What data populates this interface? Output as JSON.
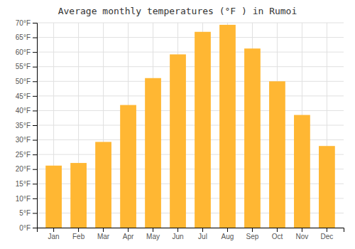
{
  "chart_data": {
    "type": "bar",
    "title": "Average monthly temperatures (°F ) in Rumoi",
    "categories": [
      "Jan",
      "Feb",
      "Mar",
      "Apr",
      "May",
      "Jun",
      "Jul",
      "Aug",
      "Sep",
      "Oct",
      "Nov",
      "Dec"
    ],
    "values": [
      21.2,
      22.1,
      29.3,
      41.9,
      51.1,
      59.2,
      66.9,
      69.3,
      61.2,
      50.0,
      38.5,
      27.9
    ],
    "color": "#FFB733",
    "ylim": [
      0,
      70
    ],
    "yticks": [
      {
        "value": 0,
        "label": "0°F"
      },
      {
        "value": 5,
        "label": "5°F"
      },
      {
        "value": 10,
        "label": "10°F"
      },
      {
        "value": 15,
        "label": "15°F"
      },
      {
        "value": 20,
        "label": "20°F"
      },
      {
        "value": 25,
        "label": "25°F"
      },
      {
        "value": 30,
        "label": "30°F"
      },
      {
        "value": 35,
        "label": "35°F"
      },
      {
        "value": 40,
        "label": "40°F"
      },
      {
        "value": 45,
        "label": "45°F"
      },
      {
        "value": 50,
        "label": "50°F"
      },
      {
        "value": 55,
        "label": "55°F"
      },
      {
        "value": 60,
        "label": "60°F"
      },
      {
        "value": 65,
        "label": "65°F"
      },
      {
        "value": 70,
        "label": "70°F"
      }
    ],
    "grid": true
  }
}
